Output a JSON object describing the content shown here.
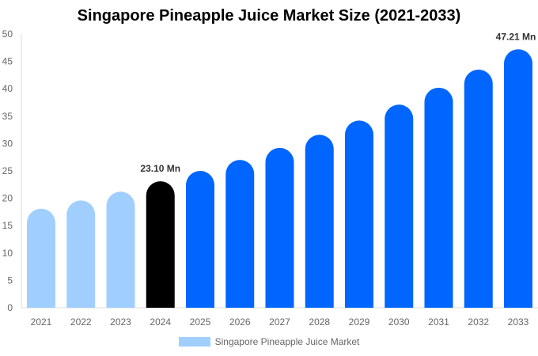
{
  "chart_data": {
    "type": "bar",
    "title": "Singapore Pineapple Juice Market Size (2021-2033)",
    "categories": [
      "2021",
      "2022",
      "2023",
      "2024",
      "2025",
      "2026",
      "2027",
      "2028",
      "2029",
      "2030",
      "2031",
      "2032",
      "2033"
    ],
    "series": [
      {
        "name": "Singapore Pineapple Juice Market",
        "values": [
          18.1,
          19.6,
          21.2,
          23.1,
          25.0,
          27.0,
          29.2,
          31.6,
          34.2,
          37.1,
          40.2,
          43.5,
          47.21
        ]
      }
    ],
    "data_labels": {
      "2024": "23.10 Mn",
      "2033": "47.21 Mn"
    },
    "ylim": [
      0,
      50
    ],
    "yticks": [
      0,
      5,
      10,
      15,
      20,
      25,
      30,
      35,
      40,
      45,
      50
    ],
    "grid": false,
    "legend_position": "bottom",
    "colors": {
      "historical": "#a0cfff",
      "base_year": "#000000",
      "forecast": "#0066ff"
    }
  }
}
